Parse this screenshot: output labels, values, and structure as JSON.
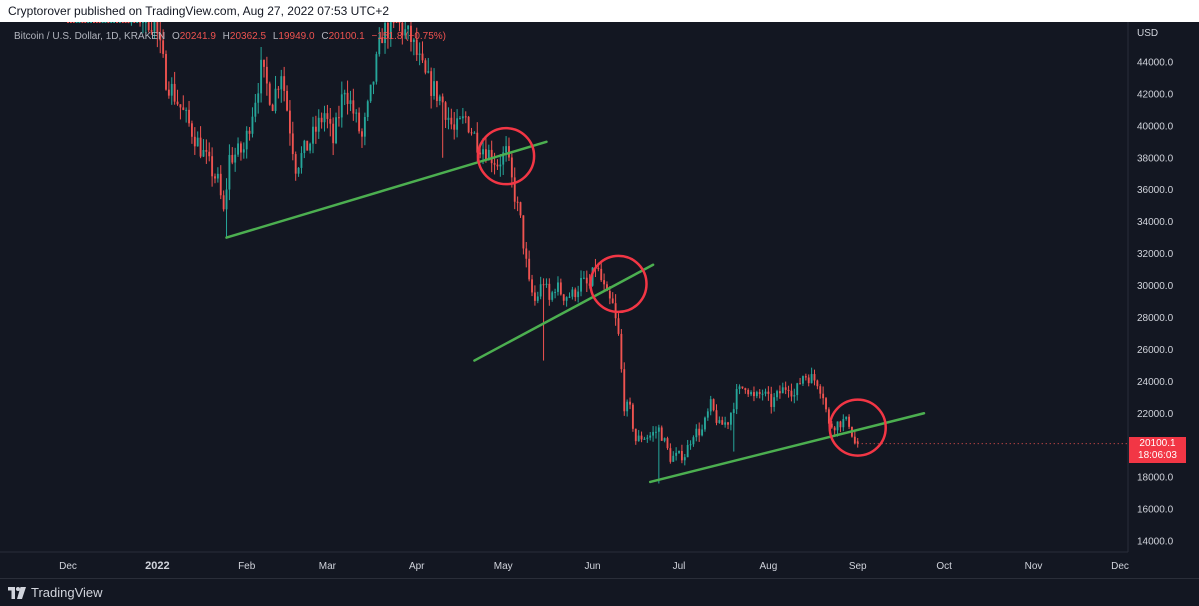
{
  "publish_line": "Cryptorover published on TradingView.com, Aug 27, 2022 07:53 UTC+2",
  "legend": {
    "symbol": "Bitcoin / U.S. Dollar, 1D, KRAKEN",
    "open_label": "O",
    "open": "20241.9",
    "high_label": "H",
    "high": "20362.5",
    "low_label": "L",
    "low": "19949.0",
    "close_label": "C",
    "close": "20100.1",
    "change": "−151.8 (−0.75%)"
  },
  "currency": "USD",
  "last_price": {
    "price": "20100.1",
    "countdown": "18:06:03"
  },
  "brand": "TradingView",
  "colors": {
    "background": "#131722",
    "up": "#26a69a",
    "down": "#ef5350",
    "trendline": "#4caf50",
    "circle": "#f23645",
    "axis_text": "#d1d4dc"
  },
  "chart_data": {
    "type": "candlestick",
    "title": "Bitcoin / U.S. Dollar, 1D, KRAKEN",
    "ylabel": "USD",
    "ylim": [
      13000,
      45500
    ],
    "y_ticks": [
      "44000.0",
      "42000.0",
      "40000.0",
      "38000.0",
      "36000.0",
      "34000.0",
      "32000.0",
      "30000.0",
      "28000.0",
      "26000.0",
      "24000.0",
      "22000.0",
      "20000.0",
      "18000.0",
      "16000.0",
      "14000.0"
    ],
    "x_ticks": [
      "Dec",
      "2022",
      "Feb",
      "Mar",
      "Apr",
      "May",
      "Jun",
      "Jul",
      "Aug",
      "Sep",
      "Oct",
      "Nov",
      "Dec"
    ],
    "x_tick_days": [
      0,
      31,
      62,
      90,
      121,
      151,
      182,
      212,
      243,
      274,
      304,
      335,
      365
    ],
    "grid": false,
    "series": [
      {
        "price_path": [
          [
            0,
            57000
          ],
          [
            3,
            49000
          ],
          [
            31,
            46500
          ],
          [
            35,
            43000
          ],
          [
            50,
            37500
          ],
          [
            53,
            36500
          ],
          [
            55,
            34500
          ],
          [
            57,
            38000
          ],
          [
            62,
            38500
          ],
          [
            68,
            43500
          ],
          [
            72,
            41500
          ],
          [
            75,
            43500
          ],
          [
            80,
            37500
          ],
          [
            85,
            39000
          ],
          [
            90,
            40800
          ],
          [
            93,
            39000
          ],
          [
            97,
            42500
          ],
          [
            103,
            39200
          ],
          [
            105,
            41000
          ],
          [
            110,
            45800
          ],
          [
            115,
            46500
          ],
          [
            120,
            45400
          ],
          [
            125,
            43000
          ],
          [
            131,
            41500
          ],
          [
            135,
            39600
          ],
          [
            139,
            40500
          ],
          [
            143,
            39000
          ],
          [
            146,
            38500
          ],
          [
            150,
            37700
          ],
          [
            153,
            38300
          ],
          [
            155,
            36500
          ],
          [
            158,
            34000
          ],
          [
            161,
            30000
          ],
          [
            163,
            29000
          ],
          [
            166,
            30300
          ],
          [
            168,
            29000
          ],
          [
            170,
            30000
          ],
          [
            173,
            29400
          ],
          [
            176,
            29400
          ],
          [
            179,
            30200
          ],
          [
            182,
            29900
          ],
          [
            184,
            31300
          ],
          [
            186,
            30300
          ],
          [
            188,
            29200
          ],
          [
            190,
            28700
          ],
          [
            192,
            26800
          ],
          [
            194,
            22500
          ],
          [
            196,
            22200
          ],
          [
            198,
            20300
          ],
          [
            200,
            20500
          ],
          [
            203,
            20600
          ],
          [
            206,
            21000
          ],
          [
            208,
            20200
          ],
          [
            210,
            19200
          ],
          [
            212,
            19300
          ],
          [
            215,
            19400
          ],
          [
            218,
            20800
          ],
          [
            221,
            20900
          ],
          [
            224,
            22500
          ],
          [
            227,
            21200
          ],
          [
            230,
            21500
          ],
          [
            233,
            23200
          ],
          [
            236,
            23800
          ],
          [
            239,
            22900
          ],
          [
            242,
            23300
          ],
          [
            245,
            22600
          ],
          [
            248,
            23300
          ],
          [
            251,
            23800
          ],
          [
            253,
            23100
          ],
          [
            256,
            24400
          ],
          [
            258,
            24300
          ],
          [
            261,
            24000
          ],
          [
            263,
            23200
          ],
          [
            265,
            21200
          ],
          [
            267,
            21300
          ],
          [
            270,
            21500
          ],
          [
            272,
            21400
          ],
          [
            274,
            20100
          ]
        ],
        "low_wicks": [
          [
            55,
            33000
          ],
          [
            130,
            38000
          ],
          [
            165,
            25300
          ],
          [
            205,
            17600
          ],
          [
            231,
            19600
          ]
        ]
      }
    ],
    "trendlines": [
      {
        "from": [
          55,
          33000
        ],
        "to": [
          166,
          39000
        ]
      },
      {
        "from": [
          141,
          25300
        ],
        "to": [
          203,
          31300
        ]
      },
      {
        "from": [
          202,
          17700
        ],
        "to": [
          297,
          22000
        ]
      }
    ],
    "circles": [
      {
        "center": [
          152,
          38100
        ]
      },
      {
        "center": [
          191,
          30100
        ]
      },
      {
        "center": [
          274,
          21100
        ]
      }
    ]
  }
}
